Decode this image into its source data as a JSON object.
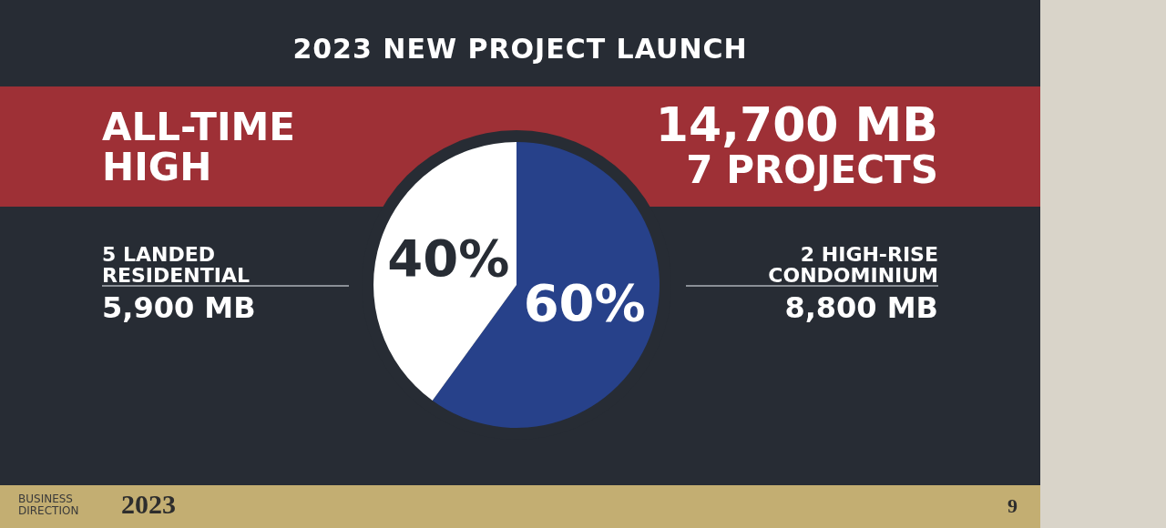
{
  "chart_data": {
    "type": "pie",
    "title": "2023 NEW PROJECT LAUNCH",
    "categories": [
      null,
      null
    ],
    "values": [
      60,
      40
    ],
    "colors": [
      "#27418a",
      "#ffffff"
    ],
    "value_labels": [
      "60%",
      "40%"
    ],
    "legend": false,
    "annotations": [
      "ALL-TIME HIGH",
      "14,700 MB",
      "7 PROJECTS",
      "5 LANDED RESIDENTIAL",
      "5,900 MB",
      "2 HIGH-RISE CONDOMINIUM",
      "8,800 MB",
      "BUSINESS DIRECTION",
      "2023",
      "9"
    ]
  }
}
